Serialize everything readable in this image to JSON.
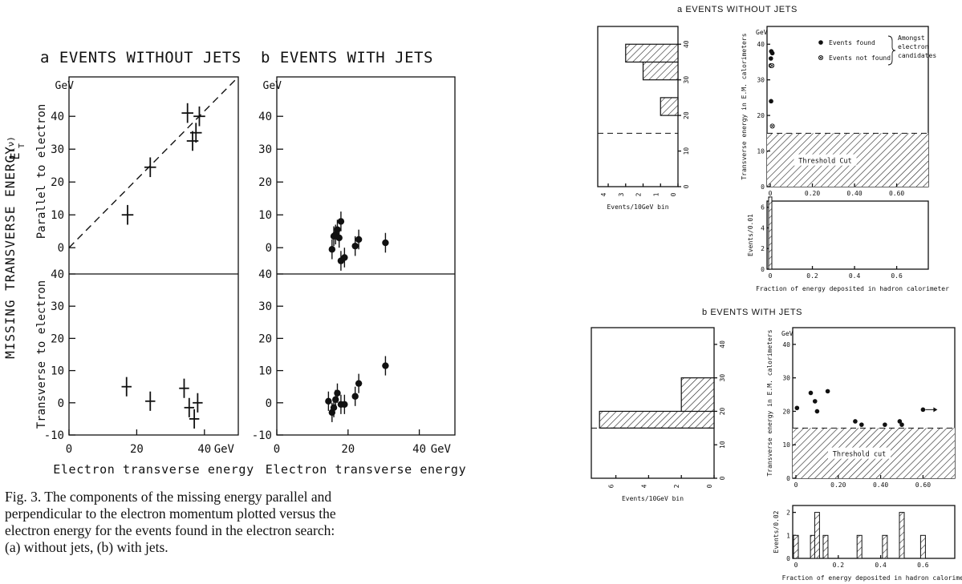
{
  "chart_data": [
    {
      "id": "fig3a",
      "type": "scatter",
      "title": "a EVENTS WITHOUT JETS",
      "ylabel_outer": "MISSING TRANSVERSE ENERGY",
      "ylabel_symbol": "E",
      "ylabel_sup": "(ν)",
      "ylabel_sub": "T",
      "xlabel": "Electron transverse energy",
      "x_ticks": [
        "0",
        "20",
        "40"
      ],
      "x_unit": "GeV",
      "xlim": [
        0,
        50
      ],
      "panels": [
        {
          "ylabel": "Parallel to electron",
          "y_unit": "GeV",
          "ylim": [
            -8,
            52
          ],
          "y_ticks": [
            "0",
            "10",
            "20",
            "30",
            "40"
          ],
          "marker": "cross",
          "points": [
            [
              17.3,
              10,
              2.5,
              3
            ],
            [
              24,
              24.5,
              2.5,
              3
            ],
            [
              35,
              41,
              2.5,
              3
            ],
            [
              36.5,
              32.5,
              2.5,
              3
            ],
            [
              37.5,
              35,
              2.5,
              3
            ],
            [
              38.5,
              40,
              2.5,
              3
            ]
          ],
          "dashed_line": [
            [
              0,
              0
            ],
            [
              50,
              52
            ]
          ]
        },
        {
          "ylabel": "Transverse to electron",
          "ylim": [
            -10,
            40
          ],
          "y_ticks": [
            "-10",
            "0",
            "10",
            "20",
            "30",
            "40"
          ],
          "marker": "cross",
          "points": [
            [
              17,
              5,
              2,
              3
            ],
            [
              24,
              0.5,
              2,
              3
            ],
            [
              34,
              4.5,
              2,
              3
            ],
            [
              35.5,
              -1.5,
              2,
              3
            ],
            [
              37,
              -5,
              2,
              3
            ],
            [
              38,
              0,
              2,
              3
            ]
          ]
        }
      ]
    },
    {
      "id": "fig3b",
      "type": "scatter",
      "title": "b EVENTS WITH JETS",
      "xlabel": "Electron transverse energy",
      "x_ticks": [
        "0",
        "20",
        "40"
      ],
      "x_unit": "GeV",
      "xlim": [
        0,
        50
      ],
      "panels": [
        {
          "y_unit": "GeV",
          "ylim": [
            -8,
            52
          ],
          "y_ticks": [
            "0",
            "10",
            "20",
            "30",
            "40"
          ],
          "marker": "dot",
          "points": [
            [
              15.5,
              -0.5,
              3
            ],
            [
              16,
              3.5,
              3
            ],
            [
              16.5,
              4,
              3
            ],
            [
              17,
              5.5,
              3
            ],
            [
              17.5,
              3,
              3
            ],
            [
              18,
              8,
              3
            ],
            [
              18,
              -4,
              3
            ],
            [
              19,
              -3,
              3
            ],
            [
              22,
              0.5,
              3
            ],
            [
              23,
              2.5,
              3
            ],
            [
              30.5,
              1.5,
              3
            ]
          ]
        },
        {
          "ylim": [
            -10,
            40
          ],
          "y_ticks": [
            "-10",
            "0",
            "10",
            "20",
            "30",
            "40"
          ],
          "marker": "dot",
          "points": [
            [
              14.5,
              0.5,
              3
            ],
            [
              15.5,
              -3,
              3
            ],
            [
              16,
              -1.5,
              3
            ],
            [
              16.5,
              1,
              3
            ],
            [
              17,
              3,
              3
            ],
            [
              18,
              -0.5,
              3
            ],
            [
              19,
              -0.5,
              3
            ],
            [
              22,
              2,
              3
            ],
            [
              23,
              6,
              3
            ],
            [
              30.5,
              11.5,
              3
            ]
          ]
        }
      ]
    },
    {
      "id": "fig4a",
      "type": "scatter",
      "title": "a  EVENTS  WITHOUT  JETS",
      "hist_xlabel": "Events/10GeV bin",
      "hist_x_ticks": [
        "4",
        "3",
        "2",
        "1",
        "0"
      ],
      "hist_y_ticks": [
        "0",
        "10",
        "20",
        "30",
        "40"
      ],
      "hist_bins": [
        {
          "from": 15,
          "to": 20,
          "count": 0
        },
        {
          "from": 20,
          "to": 25,
          "count": 1
        },
        {
          "from": 25,
          "to": 30,
          "count": 0
        },
        {
          "from": 30,
          "to": 35,
          "count": 2
        },
        {
          "from": 35,
          "to": 40,
          "count": 3
        }
      ],
      "hist_cut": 15,
      "y_unit": "GeV",
      "ylabel": "Transverse energy in E.M. calorimeters",
      "y_ticks": [
        "0",
        "10",
        "20",
        "30",
        "40"
      ],
      "x_ticks": [
        "0",
        "0.20",
        "0.40",
        "0.60"
      ],
      "legend": [
        "Events found",
        "Events not found"
      ],
      "legend_brace_lines": [
        "Amongst",
        "electron",
        "candidates"
      ],
      "points_found": [
        [
          0.005,
          38
        ],
        [
          0.01,
          37.5
        ],
        [
          0.003,
          36
        ],
        [
          0.004,
          24
        ]
      ],
      "points_not_found": [
        [
          0.003,
          34
        ],
        [
          0.008,
          34
        ],
        [
          0.01,
          17
        ]
      ],
      "threshold_label": "Threshold  Cut",
      "threshold": 15,
      "frac_ylabel": "Events/0.01",
      "frac_y_ticks": [
        "0",
        "2",
        "4",
        "6"
      ],
      "frac_x_ticks": [
        "0",
        "0.2",
        "0.4",
        "0.6"
      ],
      "frac_xlabel": "Fraction of energy deposited in hadron calorimeter",
      "frac_bins": [
        {
          "x": 0,
          "count": 7
        }
      ]
    },
    {
      "id": "fig4b",
      "type": "scatter",
      "title": "b   EVENTS  WITH  JETS",
      "hist_xlabel": "Events/10GeV bin",
      "hist_x_ticks": [
        "6",
        "4",
        "2",
        "0"
      ],
      "hist_y_ticks": [
        "0",
        "10",
        "20",
        "30",
        "40"
      ],
      "hist_bins": [
        {
          "from": 15,
          "to": 20,
          "count": 7
        },
        {
          "from": 20,
          "to": 30,
          "count": 2
        }
      ],
      "hist_cut": 15,
      "y_unit": "GeV",
      "ylabel": "Transverse energy in E.M. calorimeters",
      "y_ticks": [
        "0",
        "10",
        "20",
        "30",
        "40"
      ],
      "x_ticks": [
        "0",
        "0.20",
        "0.40",
        "0.60"
      ],
      "points_found": [
        [
          0.005,
          21
        ],
        [
          0.07,
          25.5
        ],
        [
          0.09,
          23
        ],
        [
          0.1,
          20
        ],
        [
          0.15,
          26
        ],
        [
          0.28,
          17
        ],
        [
          0.31,
          16
        ],
        [
          0.42,
          16
        ],
        [
          0.49,
          17
        ],
        [
          0.5,
          16
        ],
        [
          0.6,
          20.5
        ]
      ],
      "overflow_arrow": [
        0.6,
        20.5
      ],
      "threshold_label": "Threshold  cut",
      "threshold": 15,
      "frac_ylabel": "Events/0.02",
      "frac_y_ticks": [
        "0",
        "1",
        "2"
      ],
      "frac_x_ticks": [
        "0",
        "0.2",
        "0.4",
        "0.6"
      ],
      "frac_xlabel": "Fraction of energy deposited in hadron calorimeter",
      "frac_bins": [
        {
          "x": 0,
          "count": 1
        },
        {
          "x": 0.08,
          "count": 1
        },
        {
          "x": 0.1,
          "count": 2
        },
        {
          "x": 0.14,
          "count": 1
        },
        {
          "x": 0.3,
          "count": 1
        },
        {
          "x": 0.42,
          "count": 1
        },
        {
          "x": 0.5,
          "count": 2
        },
        {
          "x": 0.6,
          "count": 1
        }
      ]
    }
  ],
  "caption_lines": [
    "Fig. 3. The components of the missing energy parallel and",
    "perpendicular to the electron momentum plotted versus the",
    "electron energy for the events found in the electron search:",
    "(a) without jets, (b) with jets."
  ]
}
